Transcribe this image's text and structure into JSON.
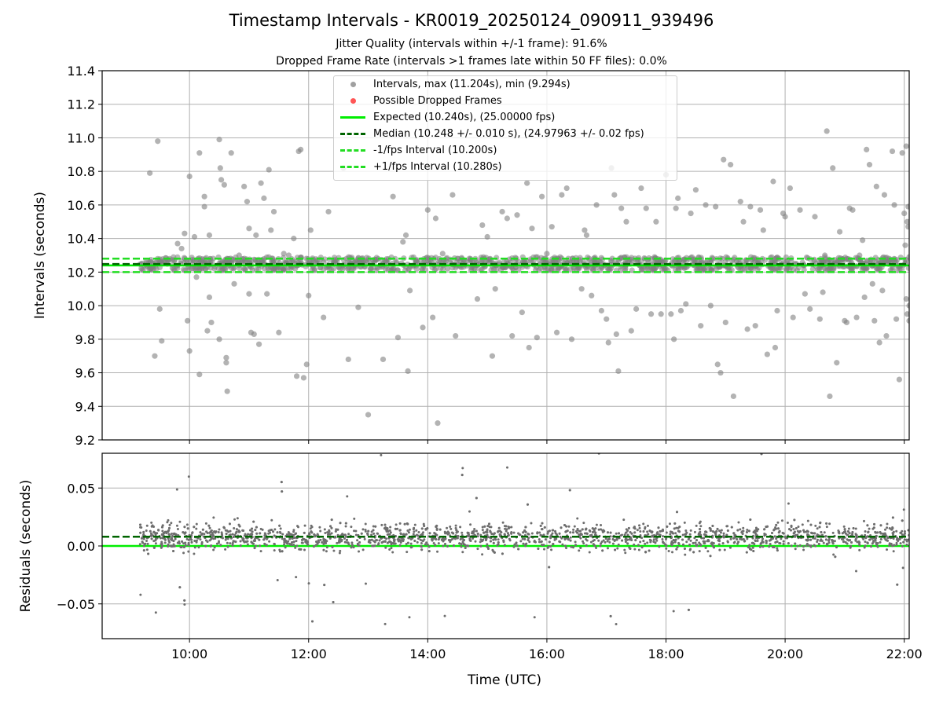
{
  "title": "Timestamp Intervals - KR0019_20250124_090911_939496",
  "subtitle_1": "Jitter Quality (intervals within +/-1 frame): 91.6%",
  "subtitle_2": "Dropped Frame Rate (intervals >1 frames late within 50 FF files): 0.0%",
  "colors": {
    "intervals": "#808080",
    "dropped": "#ff0000",
    "expected": "#00ee00",
    "median": "#006400",
    "fps_bound": "#22dd22",
    "grid": "#b0b0b0"
  },
  "legend": {
    "intervals": "Intervals, max (11.204s), min (9.294s)",
    "dropped": "Possible Dropped Frames",
    "expected": "Expected (10.240s), (25.00000 fps)",
    "median": "Median (10.248 +/- 0.010 s), (24.97963 +/- 0.02 fps)",
    "minus_fps": "-1/fps Interval (10.200s)",
    "plus_fps": "+1/fps Interval (10.280s)",
    "position": "upper center"
  },
  "chart_data": [
    {
      "type": "scatter",
      "name": "intervals-panel",
      "ylabel": "Intervals (seconds)",
      "ylim": [
        9.2,
        11.4
      ],
      "y_ticks": [
        "9.2",
        "9.4",
        "9.6",
        "9.8",
        "10.0",
        "10.2",
        "10.4",
        "10.6",
        "10.8",
        "11.0",
        "11.2",
        "11.4"
      ],
      "xlim": [
        "08:32",
        "22:05"
      ],
      "grid": true,
      "expected": 10.24,
      "median": 10.248,
      "minus_fps": 10.2,
      "plus_fps": 10.28,
      "band_range": [
        10.21,
        10.29
      ],
      "series_range": [
        "09:10",
        "22:05"
      ],
      "outliers": [
        [
          "09:20",
          10.79
        ],
        [
          "09:25",
          9.7
        ],
        [
          "09:28",
          10.98
        ],
        [
          "09:30",
          9.98
        ],
        [
          "09:32",
          9.79
        ],
        [
          "09:45",
          10.21
        ],
        [
          "09:48",
          10.37
        ],
        [
          "09:52",
          10.34
        ],
        [
          "09:55",
          10.43
        ],
        [
          "09:58",
          9.91
        ],
        [
          "10:00",
          10.77
        ],
        [
          "10:00",
          9.73
        ],
        [
          "10:05",
          10.41
        ],
        [
          "10:07",
          10.17
        ],
        [
          "10:10",
          9.59
        ],
        [
          "10:10",
          10.91
        ],
        [
          "10:15",
          10.65
        ],
        [
          "10:15",
          10.59
        ],
        [
          "10:18",
          9.85
        ],
        [
          "10:20",
          10.42
        ],
        [
          "10:20",
          10.05
        ],
        [
          "10:22",
          9.9
        ],
        [
          "10:30",
          9.8
        ],
        [
          "10:30",
          10.99
        ],
        [
          "10:31",
          10.82
        ],
        [
          "10:32",
          10.75
        ],
        [
          "10:35",
          10.72
        ],
        [
          "10:37",
          9.69
        ],
        [
          "10:37",
          9.66
        ],
        [
          "10:38",
          9.49
        ],
        [
          "10:40",
          10.24
        ],
        [
          "10:42",
          10.91
        ],
        [
          "10:45",
          10.13
        ],
        [
          "10:50",
          10.3
        ],
        [
          "10:55",
          10.71
        ],
        [
          "10:58",
          10.62
        ],
        [
          "11:00",
          10.46
        ],
        [
          "11:00",
          10.07
        ],
        [
          "11:02",
          9.84
        ],
        [
          "11:05",
          9.83
        ],
        [
          "11:07",
          10.42
        ],
        [
          "11:10",
          9.77
        ],
        [
          "11:12",
          10.73
        ],
        [
          "11:15",
          10.64
        ],
        [
          "11:18",
          10.07
        ],
        [
          "11:20",
          10.81
        ],
        [
          "11:22",
          10.45
        ],
        [
          "11:25",
          10.56
        ],
        [
          "11:30",
          9.84
        ],
        [
          "11:35",
          10.31
        ],
        [
          "11:40",
          10.3
        ],
        [
          "11:45",
          10.4
        ],
        [
          "11:48",
          9.58
        ],
        [
          "11:50",
          10.92
        ],
        [
          "11:52",
          10.93
        ],
        [
          "11:55",
          9.57
        ],
        [
          "11:58",
          9.65
        ],
        [
          "12:00",
          10.06
        ],
        [
          "12:02",
          10.45
        ],
        [
          "12:05",
          10.27
        ],
        [
          "12:15",
          9.93
        ],
        [
          "12:20",
          10.56
        ],
        [
          "12:35",
          10.82
        ],
        [
          "12:40",
          9.68
        ],
        [
          "12:50",
          9.99
        ],
        [
          "13:00",
          9.35
        ],
        [
          "13:15",
          9.68
        ],
        [
          "13:20",
          10.25
        ],
        [
          "13:25",
          10.65
        ],
        [
          "13:30",
          9.81
        ],
        [
          "13:35",
          10.38
        ],
        [
          "13:38",
          10.42
        ],
        [
          "13:40",
          9.61
        ],
        [
          "13:42",
          10.09
        ],
        [
          "13:48",
          10.27
        ],
        [
          "13:55",
          9.87
        ],
        [
          "14:00",
          10.57
        ],
        [
          "14:05",
          9.93
        ],
        [
          "14:08",
          10.52
        ],
        [
          "14:10",
          9.3
        ],
        [
          "14:15",
          10.31
        ],
        [
          "14:20",
          10.22
        ],
        [
          "14:25",
          10.66
        ],
        [
          "14:28",
          9.82
        ],
        [
          "14:35",
          10.25
        ],
        [
          "14:50",
          10.04
        ],
        [
          "14:55",
          10.48
        ],
        [
          "15:00",
          10.41
        ],
        [
          "15:05",
          9.7
        ],
        [
          "15:08",
          10.1
        ],
        [
          "15:15",
          10.56
        ],
        [
          "15:20",
          10.52
        ],
        [
          "15:25",
          9.82
        ],
        [
          "15:30",
          10.54
        ],
        [
          "15:35",
          9.96
        ],
        [
          "15:40",
          10.73
        ],
        [
          "15:42",
          9.75
        ],
        [
          "15:45",
          10.46
        ],
        [
          "15:50",
          9.81
        ],
        [
          "15:55",
          10.65
        ],
        [
          "16:00",
          10.31
        ],
        [
          "16:05",
          10.47
        ],
        [
          "16:10",
          9.84
        ],
        [
          "16:12",
          10.25
        ],
        [
          "16:15",
          10.66
        ],
        [
          "16:20",
          10.7
        ],
        [
          "16:25",
          9.8
        ],
        [
          "16:30",
          10.26
        ],
        [
          "16:35",
          10.1
        ],
        [
          "16:38",
          10.45
        ],
        [
          "16:40",
          10.42
        ],
        [
          "16:45",
          10.06
        ],
        [
          "16:50",
          10.6
        ],
        [
          "16:55",
          9.97
        ],
        [
          "17:00",
          9.92
        ],
        [
          "17:02",
          9.78
        ],
        [
          "17:05",
          10.82
        ],
        [
          "17:08",
          10.66
        ],
        [
          "17:10",
          9.83
        ],
        [
          "17:12",
          9.61
        ],
        [
          "17:15",
          10.58
        ],
        [
          "17:20",
          10.5
        ],
        [
          "17:25",
          9.85
        ],
        [
          "17:30",
          9.98
        ],
        [
          "17:35",
          10.7
        ],
        [
          "17:40",
          10.58
        ],
        [
          "17:45",
          9.95
        ],
        [
          "17:50",
          10.5
        ],
        [
          "17:55",
          9.95
        ],
        [
          "18:00",
          10.78
        ],
        [
          "18:05",
          9.95
        ],
        [
          "18:08",
          9.8
        ],
        [
          "18:10",
          10.58
        ],
        [
          "18:12",
          10.64
        ],
        [
          "18:15",
          9.97
        ],
        [
          "18:20",
          10.01
        ],
        [
          "18:25",
          10.55
        ],
        [
          "18:30",
          10.69
        ],
        [
          "18:35",
          9.88
        ],
        [
          "18:40",
          10.6
        ],
        [
          "18:45",
          10.0
        ],
        [
          "18:50",
          10.59
        ],
        [
          "18:52",
          9.65
        ],
        [
          "18:55",
          9.6
        ],
        [
          "18:58",
          10.87
        ],
        [
          "19:00",
          9.9
        ],
        [
          "19:05",
          10.84
        ],
        [
          "19:08",
          9.46
        ],
        [
          "19:15",
          10.62
        ],
        [
          "19:18",
          10.5
        ],
        [
          "19:22",
          9.86
        ],
        [
          "19:25",
          10.59
        ],
        [
          "19:30",
          9.88
        ],
        [
          "19:35",
          10.57
        ],
        [
          "19:38",
          10.45
        ],
        [
          "19:42",
          9.71
        ],
        [
          "19:48",
          10.74
        ],
        [
          "19:50",
          9.75
        ],
        [
          "19:52",
          9.97
        ],
        [
          "19:58",
          10.55
        ],
        [
          "20:00",
          10.53
        ],
        [
          "20:05",
          10.7
        ],
        [
          "20:08",
          9.93
        ],
        [
          "20:12",
          10.21
        ],
        [
          "20:15",
          10.57
        ],
        [
          "20:20",
          10.07
        ],
        [
          "20:25",
          9.98
        ],
        [
          "20:30",
          10.53
        ],
        [
          "20:35",
          9.92
        ],
        [
          "20:38",
          10.08
        ],
        [
          "20:40",
          10.3
        ],
        [
          "20:42",
          11.04
        ],
        [
          "20:45",
          9.46
        ],
        [
          "20:48",
          10.82
        ],
        [
          "20:52",
          9.66
        ],
        [
          "20:55",
          10.44
        ],
        [
          "21:00",
          9.91
        ],
        [
          "21:02",
          9.9
        ],
        [
          "21:05",
          10.58
        ],
        [
          "21:08",
          10.57
        ],
        [
          "21:12",
          9.93
        ],
        [
          "21:15",
          10.3
        ],
        [
          "21:18",
          10.39
        ],
        [
          "21:20",
          10.05
        ],
        [
          "21:22",
          10.93
        ],
        [
          "21:25",
          10.84
        ],
        [
          "21:28",
          10.13
        ],
        [
          "21:30",
          9.91
        ],
        [
          "21:32",
          10.71
        ],
        [
          "21:35",
          9.78
        ],
        [
          "21:38",
          10.09
        ],
        [
          "21:40",
          10.66
        ],
        [
          "21:42",
          9.82
        ],
        [
          "21:45",
          10.28
        ],
        [
          "21:48",
          10.92
        ],
        [
          "21:50",
          10.6
        ],
        [
          "21:52",
          9.92
        ],
        [
          "21:55",
          9.56
        ],
        [
          "21:58",
          10.91
        ],
        [
          "22:00",
          10.55
        ],
        [
          "22:01",
          10.36
        ],
        [
          "22:02",
          10.04
        ],
        [
          "22:02",
          10.95
        ],
        [
          "22:03",
          10.5
        ],
        [
          "22:03",
          9.95
        ],
        [
          "22:04",
          10.59
        ],
        [
          "22:04",
          10.47
        ],
        [
          "22:05",
          10.29
        ],
        [
          "22:05",
          9.91
        ],
        [
          "22:05",
          10.0
        ]
      ]
    },
    {
      "type": "scatter",
      "name": "residuals-panel",
      "xlabel": "Time (UTC)",
      "ylabel": "Residuals (seconds)",
      "ylim": [
        -0.08,
        0.08
      ],
      "y_ticks": [
        "−0.05",
        "0.00",
        "0.05"
      ],
      "y_tick_values": [
        -0.05,
        0.0,
        0.05
      ],
      "x_ticks": [
        "10:00",
        "12:00",
        "14:00",
        "16:00",
        "18:00",
        "20:00",
        "22:00"
      ],
      "xlim": [
        "08:32",
        "22:05"
      ],
      "grid": true,
      "expected": 0.0,
      "median": 0.008,
      "series_range": [
        "09:10",
        "22:05"
      ],
      "spread": 0.025
    }
  ]
}
